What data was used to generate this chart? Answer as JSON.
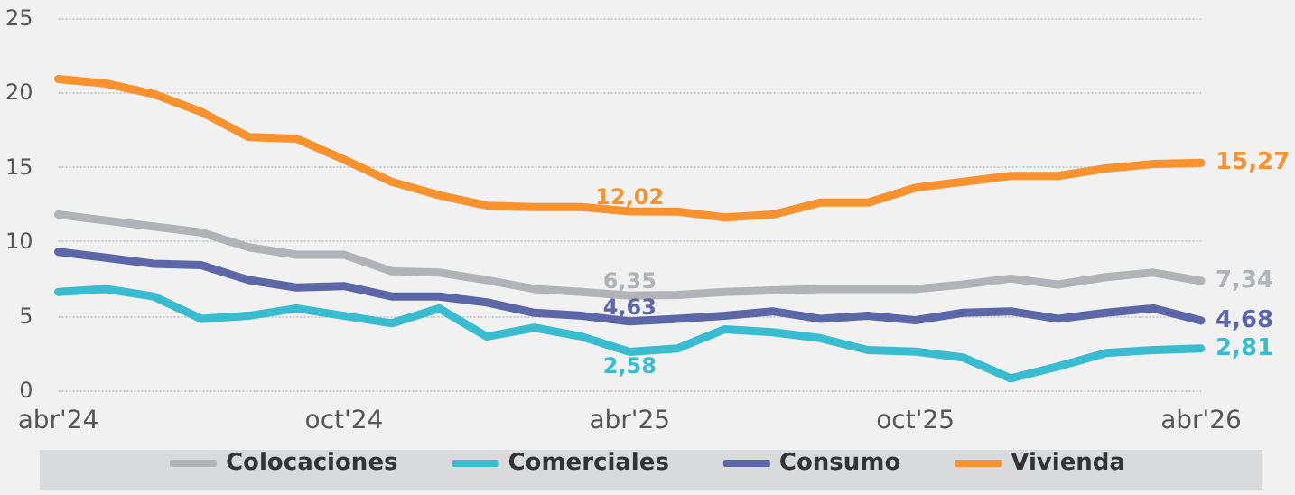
{
  "chart_data": {
    "type": "line",
    "categories": [
      "abr'24",
      null,
      null,
      null,
      null,
      null,
      "oct'24",
      null,
      null,
      null,
      null,
      null,
      "abr'25",
      null,
      null,
      null,
      null,
      null,
      "oct'25",
      null,
      null,
      null,
      null,
      null,
      "abr'26"
    ],
    "series": [
      {
        "name": "Colocaciones",
        "color": "#b1b3b6",
        "values": [
          11.8,
          11.4,
          11.0,
          10.6,
          9.6,
          9.1,
          9.1,
          8.0,
          7.9,
          7.4,
          6.8,
          6.6,
          6.35,
          6.4,
          6.6,
          6.7,
          6.8,
          6.8,
          6.8,
          7.1,
          7.5,
          7.1,
          7.6,
          7.9,
          7.34
        ],
        "value_labels": [
          null,
          null,
          null,
          null,
          null,
          null,
          null,
          null,
          null,
          null,
          null,
          null,
          "6,35",
          null,
          null,
          null,
          null,
          null,
          null,
          null,
          null,
          null,
          null,
          null,
          "7,34"
        ]
      },
      {
        "name": "Comerciales",
        "color": "#39bccf",
        "values": [
          6.6,
          6.8,
          6.3,
          4.8,
          5.0,
          5.5,
          5.0,
          4.5,
          5.5,
          3.6,
          4.2,
          3.6,
          2.58,
          2.8,
          4.1,
          3.9,
          3.5,
          2.7,
          2.6,
          2.2,
          0.8,
          1.6,
          2.5,
          2.7,
          2.81
        ],
        "value_labels": [
          null,
          null,
          null,
          null,
          null,
          null,
          null,
          null,
          null,
          null,
          null,
          null,
          "2,58",
          null,
          null,
          null,
          null,
          null,
          null,
          null,
          null,
          null,
          null,
          null,
          "2,81"
        ]
      },
      {
        "name": "Consumo",
        "color": "#5b67a6",
        "values": [
          9.3,
          8.9,
          8.5,
          8.4,
          7.4,
          6.9,
          7.0,
          6.3,
          6.3,
          5.9,
          5.2,
          5.0,
          4.63,
          4.8,
          5.0,
          5.3,
          4.8,
          5.0,
          4.7,
          5.2,
          5.3,
          4.8,
          5.2,
          5.5,
          4.68
        ],
        "value_labels": [
          null,
          null,
          null,
          null,
          null,
          null,
          null,
          null,
          null,
          null,
          null,
          null,
          "4,63",
          null,
          null,
          null,
          null,
          null,
          null,
          null,
          null,
          null,
          null,
          null,
          "4,68"
        ]
      },
      {
        "name": "Vivienda",
        "color": "#f7922f",
        "values": [
          20.9,
          20.6,
          19.9,
          18.7,
          17.0,
          16.9,
          15.5,
          14.0,
          13.1,
          12.4,
          12.3,
          12.3,
          12.02,
          12.0,
          11.6,
          11.8,
          12.6,
          12.6,
          13.6,
          14.0,
          14.4,
          14.4,
          14.9,
          15.2,
          15.27
        ],
        "value_labels": [
          null,
          null,
          null,
          null,
          null,
          null,
          null,
          null,
          null,
          null,
          null,
          null,
          "12,02",
          null,
          null,
          null,
          null,
          null,
          null,
          null,
          null,
          null,
          null,
          null,
          "15,27"
        ]
      }
    ],
    "ylim": [
      0,
      25
    ],
    "yticks": [
      0,
      5,
      10,
      15,
      20,
      25
    ],
    "grid": "y",
    "legend": "bottom",
    "marker": "none",
    "line_style": "solid"
  }
}
